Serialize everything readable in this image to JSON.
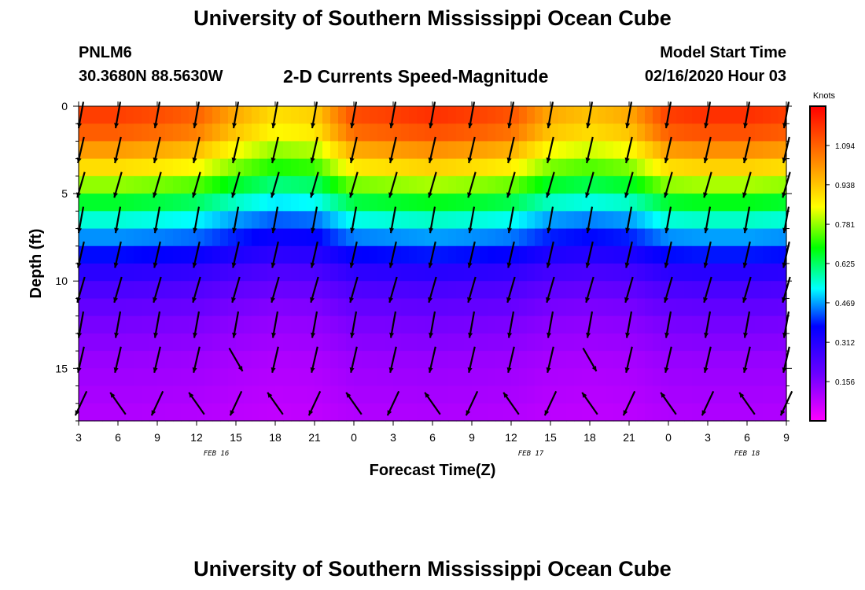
{
  "header": {
    "title": "University of Southern Mississippi Ocean Cube",
    "station": "PNLM6",
    "coordinates": "30.3680N 88.5630W",
    "subtitle": "2-D Currents Speed-Magnitude",
    "model_start_label": "Model Start Time",
    "model_start_value": "02/16/2020 Hour 03"
  },
  "footer": {
    "title": "University of Southern Mississippi Ocean Cube"
  },
  "chart_data": {
    "type": "heatmap",
    "title": "2-D Currents Speed-Magnitude",
    "xlabel": "Forecast Time(Z)",
    "ylabel": "Depth (ft)",
    "x_ticks": [
      "3",
      "6",
      "9",
      "12",
      "15",
      "18",
      "21",
      "0",
      "3",
      "6",
      "9",
      "12",
      "15",
      "18",
      "21",
      "0",
      "3",
      "6",
      "9"
    ],
    "date_labels": [
      {
        "label": "FEB 16",
        "tick_index": 3.5
      },
      {
        "label": "FEB 17",
        "tick_index": 11.5
      },
      {
        "label": "FEB 18",
        "tick_index": 17
      }
    ],
    "y_ticks": [
      0,
      5,
      10,
      15
    ],
    "ylim": [
      0,
      18
    ],
    "colorbar": {
      "unit": "Knots",
      "ticks": [
        "1.094",
        "0.938",
        "0.781",
        "0.625",
        "0.469",
        "0.312",
        "0.156"
      ],
      "tick_values": [
        1.094,
        0.938,
        0.781,
        0.625,
        0.469,
        0.312,
        0.156
      ],
      "range": [
        0,
        1.25
      ]
    },
    "speed_profile_surface_to_bottom": [
      1.15,
      1.1,
      1.0,
      0.9,
      0.78,
      0.66,
      0.55,
      0.46,
      0.38,
      0.3,
      0.24,
      0.2,
      0.17,
      0.15,
      0.13,
      0.12,
      0.11,
      0.1
    ],
    "time_factor_by_tick": [
      1.0,
      1.0,
      0.98,
      0.95,
      0.85,
      0.78,
      0.8,
      0.98,
      1.0,
      1.02,
      1.0,
      0.97,
      0.85,
      0.82,
      0.85,
      1.0,
      1.02,
      1.02,
      1.0
    ],
    "vector_depths": [
      0.5,
      2.5,
      4.5,
      6.5,
      8.5,
      10.5,
      12.5,
      14.5,
      17
    ]
  }
}
